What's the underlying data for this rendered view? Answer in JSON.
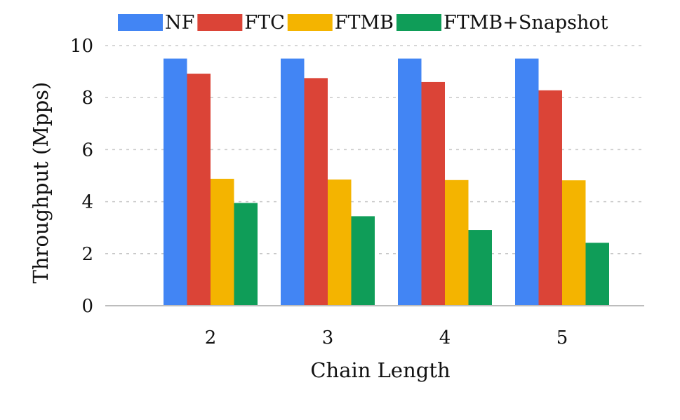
{
  "chart_data": {
    "type": "bar",
    "xlabel": "Chain Length",
    "ylabel": "Throughput (Mpps)",
    "categories": [
      "2",
      "3",
      "4",
      "5"
    ],
    "ylim": [
      0,
      10
    ],
    "yticks": [
      0,
      2,
      4,
      6,
      8,
      10
    ],
    "grid": true,
    "legend_position": "top",
    "series": [
      {
        "name": "NF",
        "color": "#4285f4",
        "values": [
          9.5,
          9.5,
          9.5,
          9.5
        ]
      },
      {
        "name": "FTC",
        "color": "#db4437",
        "values": [
          8.92,
          8.75,
          8.6,
          8.28
        ]
      },
      {
        "name": "FTMB",
        "color": "#f4b400",
        "values": [
          4.88,
          4.85,
          4.83,
          4.82
        ]
      },
      {
        "name": "FTMB+Snapshot",
        "color": "#0f9d58",
        "values": [
          3.95,
          3.44,
          2.91,
          2.42
        ]
      }
    ]
  }
}
